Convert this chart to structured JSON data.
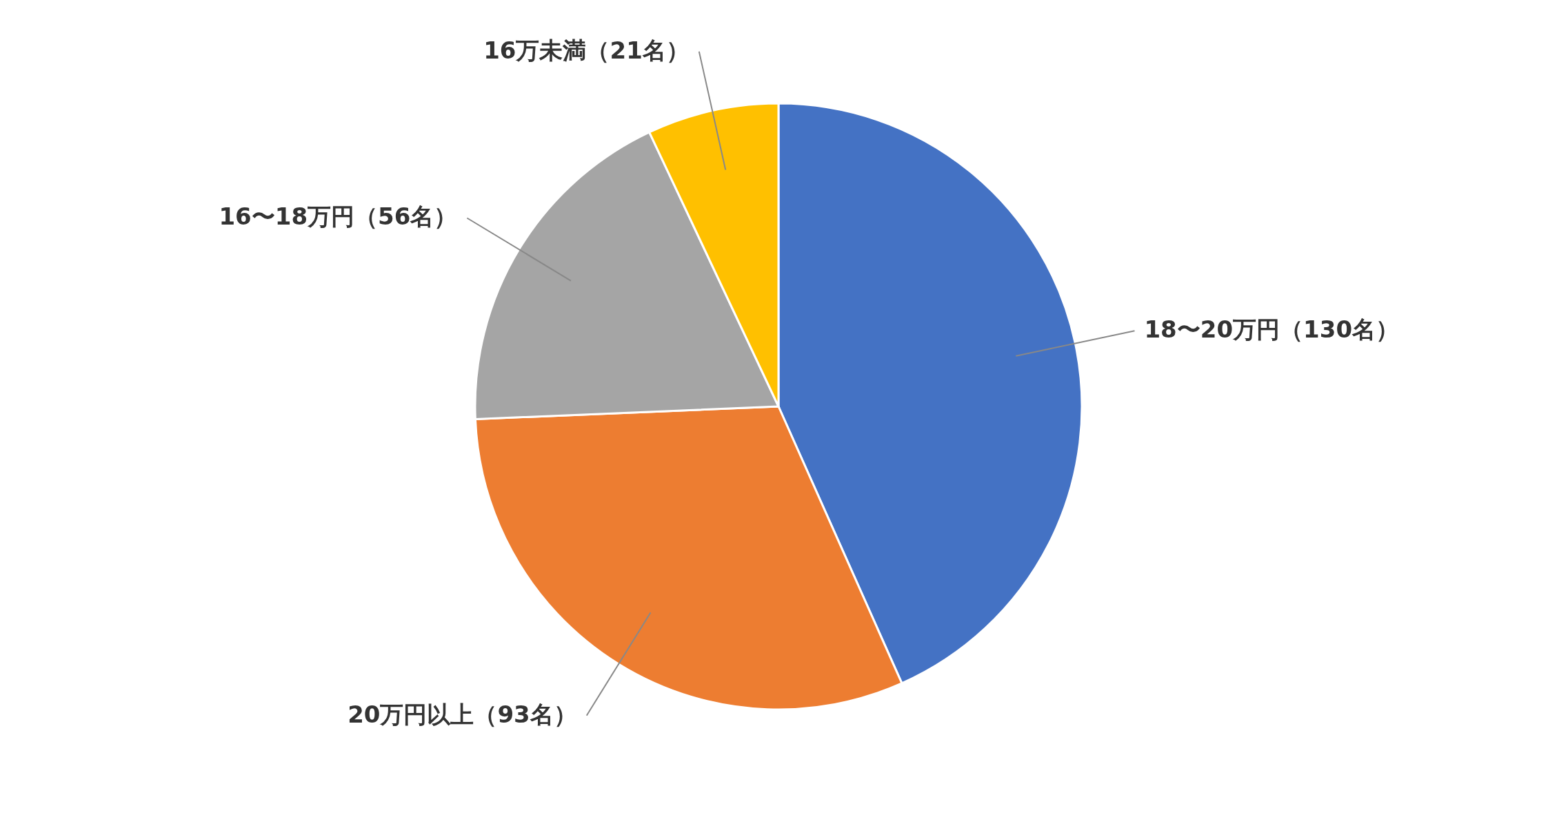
{
  "chart_data": {
    "type": "pie",
    "categories": [
      "18〜20万円",
      "20万円以上",
      "16〜18万円",
      "16万未満"
    ],
    "values": [
      130,
      93,
      56,
      21
    ],
    "colors": [
      "#4472c4",
      "#ed7d31",
      "#a5a5a5",
      "#ffc000"
    ],
    "value_labels": [
      "（130名）",
      "（93名）",
      "（56名）",
      "（21名）"
    ]
  }
}
